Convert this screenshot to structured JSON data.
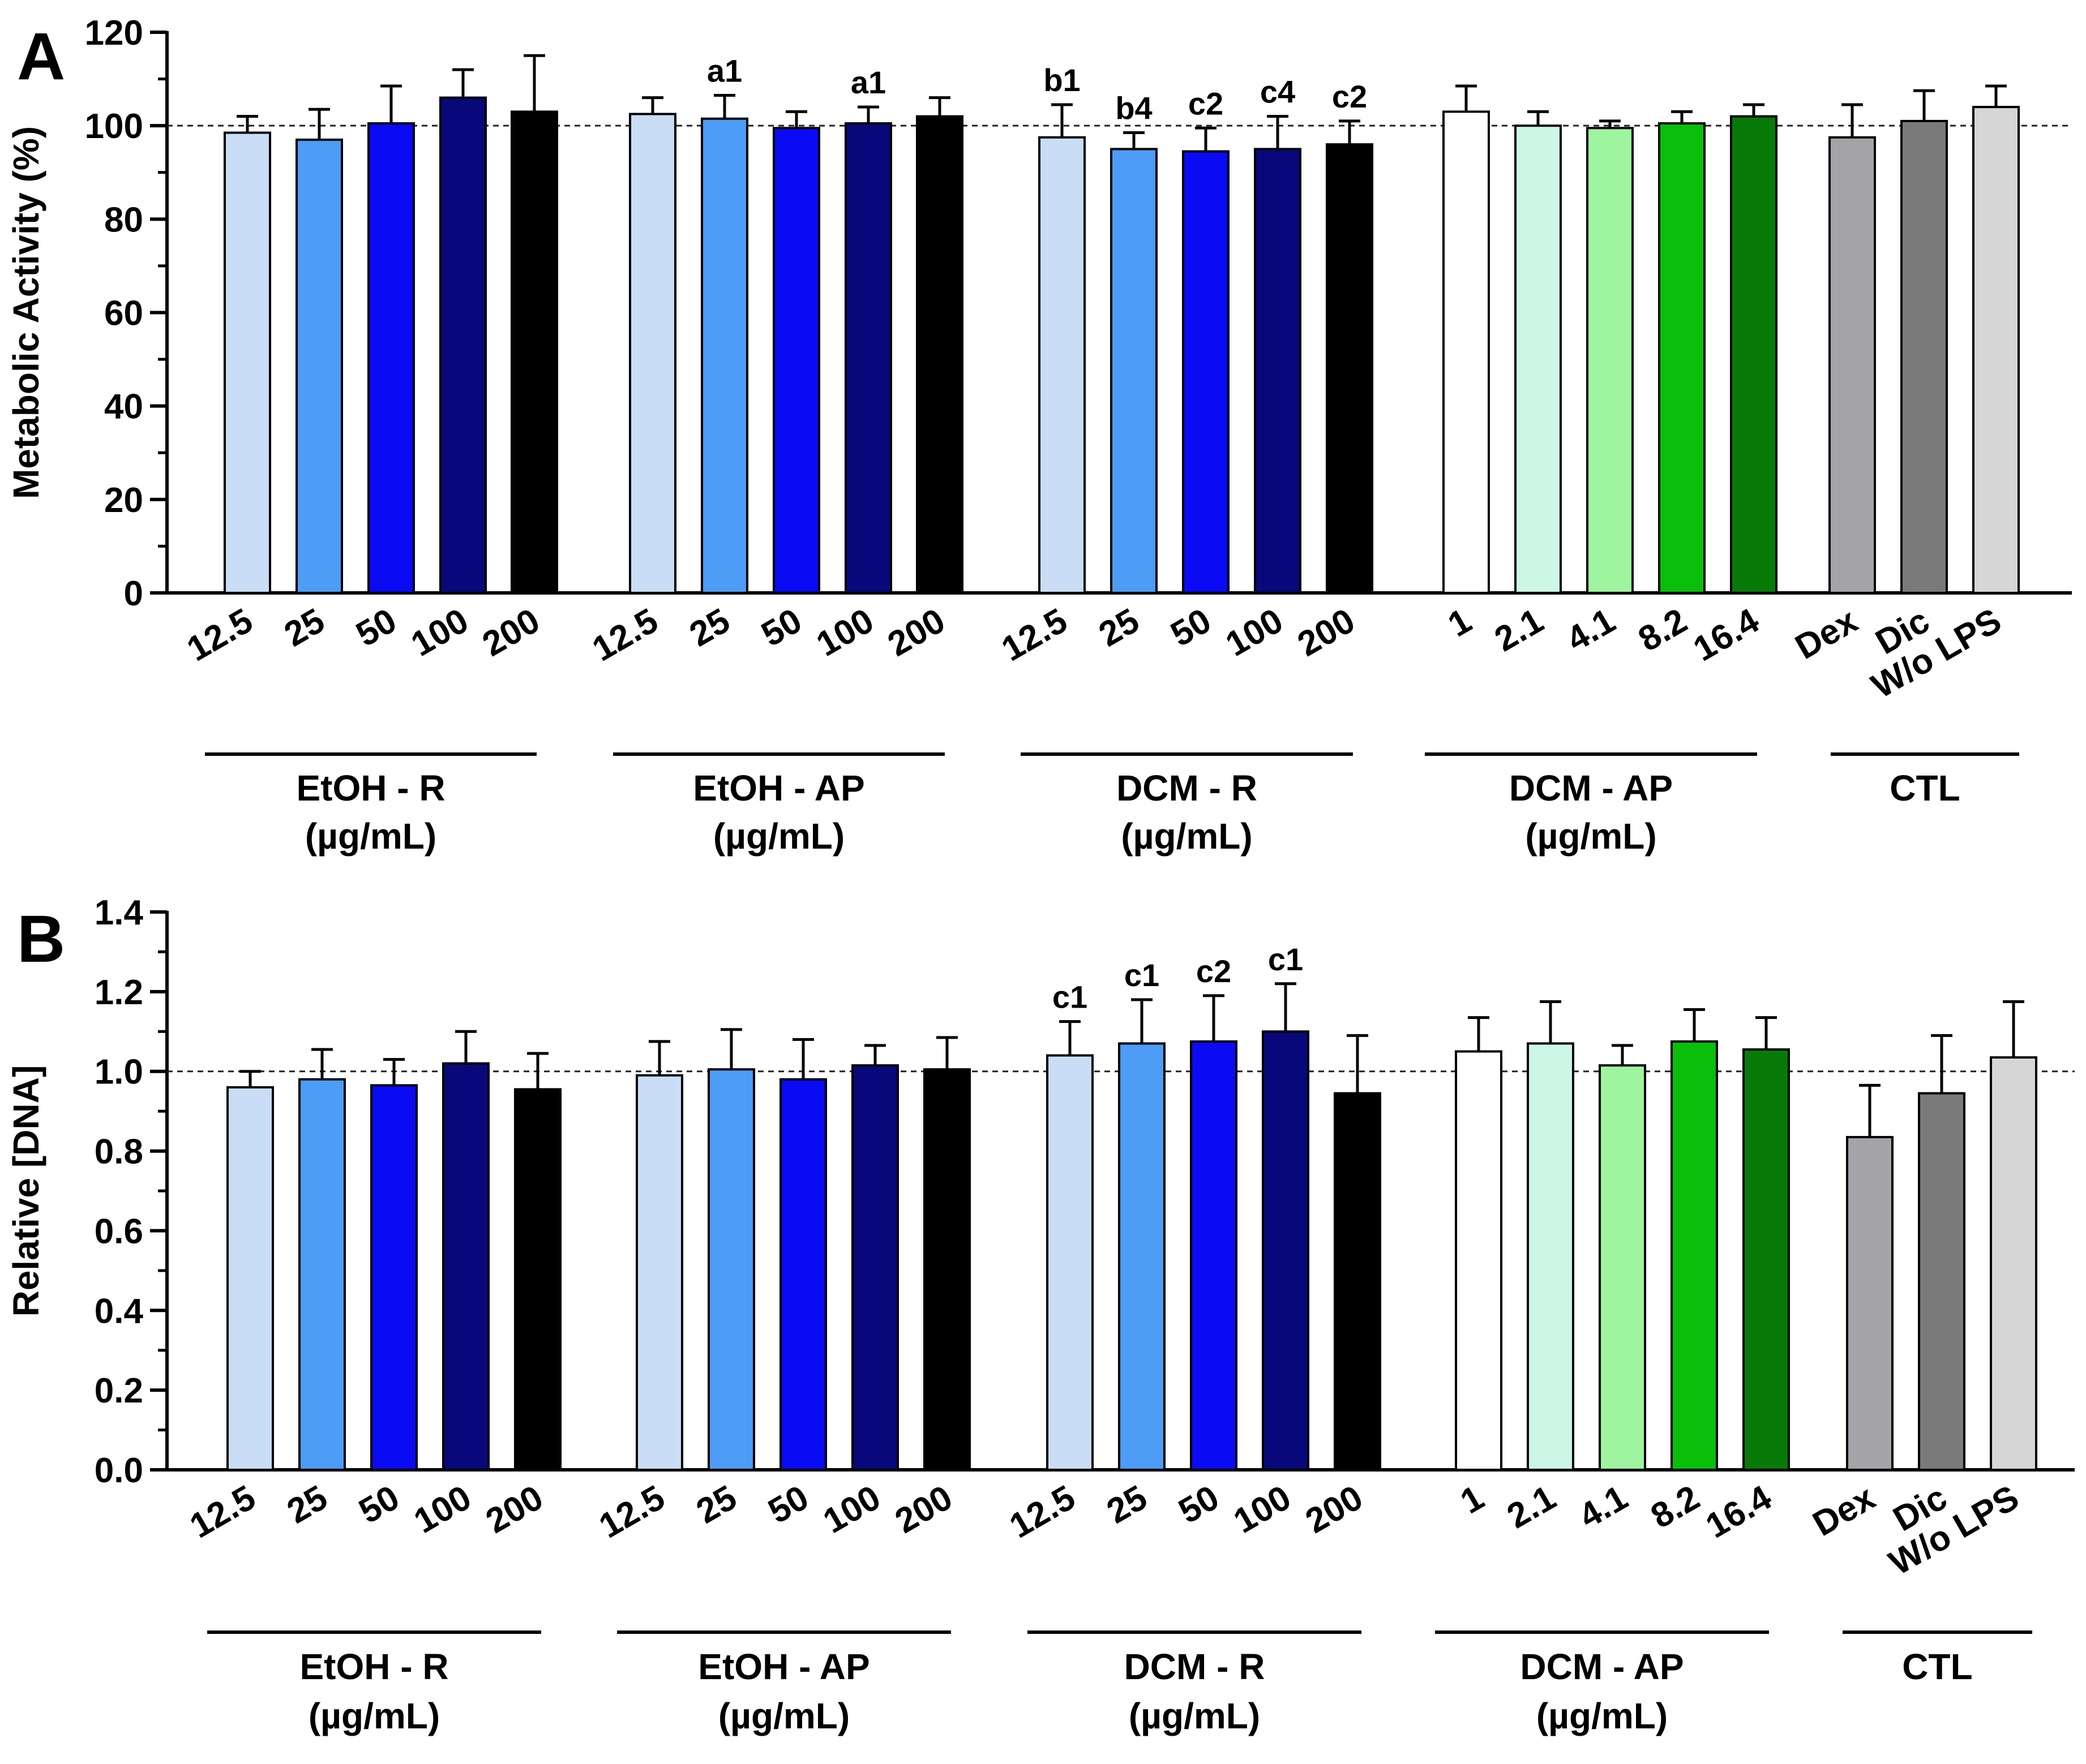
{
  "chart_data": [
    {
      "panel": "A",
      "type": "bar",
      "ylabel": "Metabolic Activity (%)",
      "ylim": [
        0,
        120
      ],
      "yticks": [
        "0",
        "20",
        "40",
        "60",
        "80",
        "100",
        "120"
      ],
      "reference_line": 100,
      "groups": [
        {
          "name": "EtOH - R",
          "unit": "(µg/mL)",
          "bars": [
            {
              "label": "12.5",
              "value": 98.5,
              "error": 3.5,
              "color": "#c9ddf7",
              "annotation": ""
            },
            {
              "label": "25",
              "value": 97.0,
              "error": 6.5,
              "color": "#4d9cf5",
              "annotation": ""
            },
            {
              "label": "50",
              "value": 100.5,
              "error": 8.0,
              "color": "#0a0af5",
              "annotation": ""
            },
            {
              "label": "100",
              "value": 106.0,
              "error": 6.0,
              "color": "#08087a",
              "annotation": ""
            },
            {
              "label": "200",
              "value": 103.0,
              "error": 12.0,
              "color": "#000000",
              "annotation": ""
            }
          ]
        },
        {
          "name": "EtOH - AP",
          "unit": "(µg/mL)",
          "bars": [
            {
              "label": "12.5",
              "value": 102.5,
              "error": 3.5,
              "color": "#c9ddf7",
              "annotation": ""
            },
            {
              "label": "25",
              "value": 101.5,
              "error": 5.0,
              "color": "#4d9cf5",
              "annotation": "a1"
            },
            {
              "label": "50",
              "value": 99.5,
              "error": 3.5,
              "color": "#0a0af5",
              "annotation": ""
            },
            {
              "label": "100",
              "value": 100.5,
              "error": 3.5,
              "color": "#08087a",
              "annotation": "a1"
            },
            {
              "label": "200",
              "value": 102.0,
              "error": 4.0,
              "color": "#000000",
              "annotation": ""
            }
          ]
        },
        {
          "name": "DCM - R",
          "unit": "(µg/mL)",
          "bars": [
            {
              "label": "12.5",
              "value": 97.5,
              "error": 7.0,
              "color": "#c9ddf7",
              "annotation": "b1"
            },
            {
              "label": "25",
              "value": 95.0,
              "error": 3.5,
              "color": "#4d9cf5",
              "annotation": "b4"
            },
            {
              "label": "50",
              "value": 94.5,
              "error": 5.0,
              "color": "#0a0af5",
              "annotation": "c2"
            },
            {
              "label": "100",
              "value": 95.0,
              "error": 7.0,
              "color": "#08087a",
              "annotation": "c4"
            },
            {
              "label": "200",
              "value": 96.0,
              "error": 5.0,
              "color": "#000000",
              "annotation": "c2"
            }
          ]
        },
        {
          "name": "DCM - AP",
          "unit": "(µg/mL)",
          "bars": [
            {
              "label": "1",
              "value": 103.0,
              "error": 5.5,
              "color": "#ffffff",
              "annotation": ""
            },
            {
              "label": "2.1",
              "value": 100.0,
              "error": 3.0,
              "color": "#ccf7e6",
              "annotation": ""
            },
            {
              "label": "4.1",
              "value": 99.5,
              "error": 1.5,
              "color": "#9ff59f",
              "annotation": ""
            },
            {
              "label": "8.2",
              "value": 100.5,
              "error": 2.5,
              "color": "#0abf0a",
              "annotation": ""
            },
            {
              "label": "16.4",
              "value": 102.0,
              "error": 2.5,
              "color": "#087a08",
              "annotation": ""
            }
          ]
        },
        {
          "name": "CTL",
          "unit": "",
          "bars": [
            {
              "label": "Dex",
              "value": 97.5,
              "error": 7.0,
              "color": "#a3a3a8",
              "annotation": ""
            },
            {
              "label": "Dic",
              "value": 101.0,
              "error": 6.5,
              "color": "#7a7a7a",
              "annotation": ""
            },
            {
              "label": "W/o LPS",
              "value": 104.0,
              "error": 4.5,
              "color": "#d6d6d6",
              "annotation": ""
            }
          ]
        }
      ]
    },
    {
      "panel": "B",
      "type": "bar",
      "ylabel": "Relative [DNA]",
      "ylim": [
        0,
        1.4
      ],
      "yticks": [
        "0.0",
        "0.2",
        "0.4",
        "0.6",
        "0.8",
        "1.0",
        "1.2",
        "1.4"
      ],
      "reference_line": 1.0,
      "groups": [
        {
          "name": "EtOH - R",
          "unit": "(µg/mL)",
          "bars": [
            {
              "label": "12.5",
              "value": 0.96,
              "error": 0.04,
              "color": "#c9ddf7",
              "annotation": ""
            },
            {
              "label": "25",
              "value": 0.98,
              "error": 0.075,
              "color": "#4d9cf5",
              "annotation": ""
            },
            {
              "label": "50",
              "value": 0.965,
              "error": 0.065,
              "color": "#0a0af5",
              "annotation": ""
            },
            {
              "label": "100",
              "value": 1.02,
              "error": 0.08,
              "color": "#08087a",
              "annotation": ""
            },
            {
              "label": "200",
              "value": 0.955,
              "error": 0.09,
              "color": "#000000",
              "annotation": ""
            }
          ]
        },
        {
          "name": "EtOH - AP",
          "unit": "(µg/mL)",
          "bars": [
            {
              "label": "12.5",
              "value": 0.99,
              "error": 0.085,
              "color": "#c9ddf7",
              "annotation": ""
            },
            {
              "label": "25",
              "value": 1.005,
              "error": 0.1,
              "color": "#4d9cf5",
              "annotation": ""
            },
            {
              "label": "50",
              "value": 0.98,
              "error": 0.1,
              "color": "#0a0af5",
              "annotation": ""
            },
            {
              "label": "100",
              "value": 1.015,
              "error": 0.05,
              "color": "#08087a",
              "annotation": ""
            },
            {
              "label": "200",
              "value": 1.005,
              "error": 0.08,
              "color": "#000000",
              "annotation": ""
            }
          ]
        },
        {
          "name": "DCM - R",
          "unit": "(µg/mL)",
          "bars": [
            {
              "label": "12.5",
              "value": 1.04,
              "error": 0.085,
              "color": "#c9ddf7",
              "annotation": "c1"
            },
            {
              "label": "25",
              "value": 1.07,
              "error": 0.11,
              "color": "#4d9cf5",
              "annotation": "c1"
            },
            {
              "label": "50",
              "value": 1.075,
              "error": 0.115,
              "color": "#0a0af5",
              "annotation": "c2"
            },
            {
              "label": "100",
              "value": 1.1,
              "error": 0.12,
              "color": "#08087a",
              "annotation": "c1"
            },
            {
              "label": "200",
              "value": 0.945,
              "error": 0.145,
              "color": "#000000",
              "annotation": ""
            }
          ]
        },
        {
          "name": "DCM - AP",
          "unit": "(µg/mL)",
          "bars": [
            {
              "label": "1",
              "value": 1.05,
              "error": 0.085,
              "color": "#ffffff",
              "annotation": ""
            },
            {
              "label": "2.1",
              "value": 1.07,
              "error": 0.105,
              "color": "#ccf7e6",
              "annotation": ""
            },
            {
              "label": "4.1",
              "value": 1.015,
              "error": 0.05,
              "color": "#9ff59f",
              "annotation": ""
            },
            {
              "label": "8.2",
              "value": 1.075,
              "error": 0.08,
              "color": "#0abf0a",
              "annotation": ""
            },
            {
              "label": "16.4",
              "value": 1.055,
              "error": 0.08,
              "color": "#087a08",
              "annotation": ""
            }
          ]
        },
        {
          "name": "CTL",
          "unit": "",
          "bars": [
            {
              "label": "Dex",
              "value": 0.835,
              "error": 0.13,
              "color": "#a3a3a8",
              "annotation": ""
            },
            {
              "label": "Dic",
              "value": 0.945,
              "error": 0.145,
              "color": "#7a7a7a",
              "annotation": ""
            },
            {
              "label": "W/o LPS",
              "value": 1.035,
              "error": 0.14,
              "color": "#d6d6d6",
              "annotation": ""
            }
          ]
        }
      ]
    }
  ]
}
